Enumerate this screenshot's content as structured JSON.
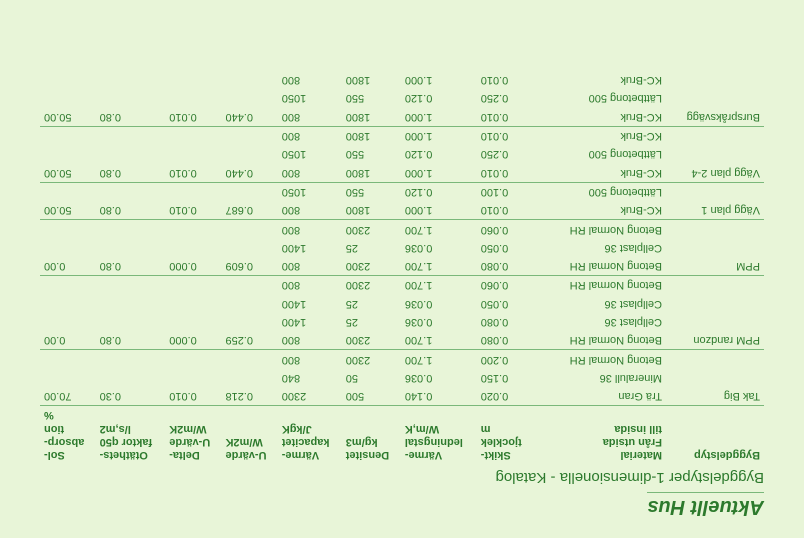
{
  "titles": {
    "main": "Aktuellt Hus",
    "sub": "Byggdelstyper 1-dimensionella - Katalog"
  },
  "headers": {
    "c0": "Byggdelstyp",
    "c1a": "Material",
    "c1b": "Från utsida",
    "c1c": "till insida",
    "c2a": "Skikt-",
    "c2b": "tjocklek",
    "c2c": "m",
    "c3a": "Värme-",
    "c3b": "ledningstal",
    "c3c": "W/m,K",
    "c4a": "Densitet",
    "c4b": "kg/m3",
    "c5a": "Värme-",
    "c5b": "kapacitet",
    "c5c": "J/kgK",
    "c6a": "U-värde",
    "c6b": "W/m2K",
    "c7a": "Delta-",
    "c7b": "U-värde",
    "c7c": "W/m2K",
    "c8a": "Otäthets-",
    "c8b": "faktor q50",
    "c8c": "l/s,m2",
    "c9a": "Sol-",
    "c9b": "absorp-",
    "c9c": "tion",
    "c9d": "%"
  },
  "rows": [
    {
      "sec": true,
      "type": "Tak Big",
      "mat": "Trä Gran",
      "t": "0.020",
      "l": "0.140",
      "d": "500",
      "k": "2300",
      "u": "0.218",
      "du": "0.010",
      "q": "0.30",
      "s": "70.00"
    },
    {
      "sec": false,
      "type": "",
      "mat": "Mineralull 36",
      "t": "0.150",
      "l": "0.036",
      "d": "50",
      "k": "840",
      "u": "",
      "du": "",
      "q": "",
      "s": ""
    },
    {
      "sec": false,
      "type": "",
      "mat": "Betong Normal RH",
      "t": "0.200",
      "l": "1.700",
      "d": "2300",
      "k": "800",
      "u": "",
      "du": "",
      "q": "",
      "s": ""
    },
    {
      "sec": true,
      "type": "PPM randzon",
      "mat": "Betong Normal RH",
      "t": "0.080",
      "l": "1.700",
      "d": "2300",
      "k": "800",
      "u": "0.259",
      "du": "0.000",
      "q": "0.80",
      "s": "0.00"
    },
    {
      "sec": false,
      "type": "",
      "mat": "Cellplast 36",
      "t": "0.080",
      "l": "0.036",
      "d": "25",
      "k": "1400",
      "u": "",
      "du": "",
      "q": "",
      "s": ""
    },
    {
      "sec": false,
      "type": "",
      "mat": "Cellplast 36",
      "t": "0.050",
      "l": "0.036",
      "d": "25",
      "k": "1400",
      "u": "",
      "du": "",
      "q": "",
      "s": ""
    },
    {
      "sec": false,
      "type": "",
      "mat": "Betong Normal RH",
      "t": "0.060",
      "l": "1.700",
      "d": "2300",
      "k": "800",
      "u": "",
      "du": "",
      "q": "",
      "s": ""
    },
    {
      "sec": true,
      "type": "PPM",
      "mat": "Betong Normal RH",
      "t": "0.080",
      "l": "1.700",
      "d": "2300",
      "k": "800",
      "u": "0.609",
      "du": "0.000",
      "q": "0.80",
      "s": "0.00"
    },
    {
      "sec": false,
      "type": "",
      "mat": "Cellplast 36",
      "t": "0.050",
      "l": "0.036",
      "d": "25",
      "k": "1400",
      "u": "",
      "du": "",
      "q": "",
      "s": ""
    },
    {
      "sec": false,
      "type": "",
      "mat": "Betong Normal RH",
      "t": "0.060",
      "l": "1.700",
      "d": "2300",
      "k": "800",
      "u": "",
      "du": "",
      "q": "",
      "s": ""
    },
    {
      "sec": true,
      "type": "Vägg plan 1",
      "mat": "KC-Bruk",
      "t": "0.010",
      "l": "1.000",
      "d": "1800",
      "k": "800",
      "u": "0.687",
      "du": "0.010",
      "q": "0.80",
      "s": "50.00"
    },
    {
      "sec": false,
      "type": "",
      "mat": "Lättbetong 500",
      "t": "0.100",
      "l": "0.120",
      "d": "550",
      "k": "1050",
      "u": "",
      "du": "",
      "q": "",
      "s": ""
    },
    {
      "sec": true,
      "type": "Vägg plan 2-4",
      "mat": "KC-Bruk",
      "t": "0.010",
      "l": "1.000",
      "d": "1800",
      "k": "800",
      "u": "0.440",
      "du": "0.010",
      "q": "0.80",
      "s": "50.00"
    },
    {
      "sec": false,
      "type": "",
      "mat": "Lättbetong 500",
      "t": "0.250",
      "l": "0.120",
      "d": "550",
      "k": "1050",
      "u": "",
      "du": "",
      "q": "",
      "s": ""
    },
    {
      "sec": false,
      "type": "",
      "mat": "KC-Bruk",
      "t": "0.010",
      "l": "1.000",
      "d": "1800",
      "k": "800",
      "u": "",
      "du": "",
      "q": "",
      "s": ""
    },
    {
      "sec": true,
      "type": "Burspråksvägg",
      "mat": "KC-Bruk",
      "t": "0.010",
      "l": "1.000",
      "d": "1800",
      "k": "800",
      "u": "0.440",
      "du": "0.010",
      "q": "0.80",
      "s": "50.00"
    },
    {
      "sec": false,
      "type": "",
      "mat": "Lättbetong 500",
      "t": "0.250",
      "l": "0.120",
      "d": "550",
      "k": "1050",
      "u": "",
      "du": "",
      "q": "",
      "s": ""
    },
    {
      "sec": false,
      "type": "",
      "mat": "KC-Bruk",
      "t": "0.010",
      "l": "1.000",
      "d": "1800",
      "k": "800",
      "u": "",
      "du": "",
      "q": "",
      "s": ""
    }
  ]
}
